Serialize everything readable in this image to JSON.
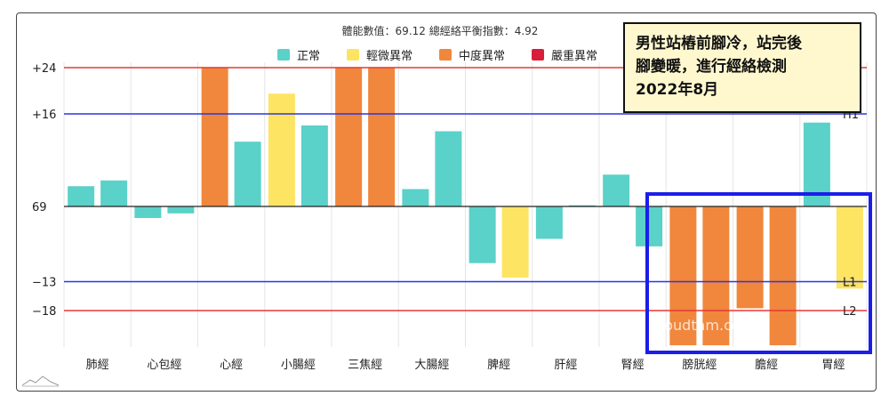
{
  "subtitle": "體能數值：69.12 總經絡平衡指數：4.92",
  "note": {
    "lines": [
      "男性站樁前腳冷，站完後",
      "腳變暖，進行經絡檢測",
      "2022年8月"
    ]
  },
  "watermark": "cloudtam.com",
  "legend": [
    {
      "label": "正常",
      "color": "#5ad1c9"
    },
    {
      "label": "輕微異常",
      "color": "#fde463"
    },
    {
      "label": "中度異常",
      "color": "#f0873d"
    },
    {
      "label": "嚴重異常",
      "color": "#d81e3a"
    }
  ],
  "chart_data": {
    "type": "bar",
    "baseline_label": "69",
    "y_ticks": [
      {
        "label": "+24",
        "value": 24
      },
      {
        "label": "+16",
        "value": 16
      },
      {
        "label": "69",
        "value": 0
      },
      {
        "label": "−13",
        "value": -13
      },
      {
        "label": "−18",
        "value": -18
      }
    ],
    "reference_lines": [
      {
        "value": 24,
        "color": "#e53935",
        "label": ""
      },
      {
        "value": 16,
        "color": "#2b36e0",
        "label": "H1"
      },
      {
        "value": -13,
        "color": "#2b36e0",
        "label": "L1"
      },
      {
        "value": -18,
        "color": "#e53935",
        "label": "L2"
      }
    ],
    "ylim": [
      -24,
      24
    ],
    "categories": [
      "肺經",
      "心包經",
      "心經",
      "小腸經",
      "三焦經",
      "大腸經",
      "脾經",
      "肝經",
      "腎經",
      "膀胱經",
      "膽經",
      "胃經"
    ],
    "bars": [
      {
        "values": [
          3.5,
          4.5
        ],
        "levels": [
          "正常",
          "正常"
        ]
      },
      {
        "values": [
          -2,
          -1.2
        ],
        "levels": [
          "正常",
          "正常"
        ]
      },
      {
        "values": [
          24,
          11.2
        ],
        "levels": [
          "中度異常",
          "正常"
        ]
      },
      {
        "values": [
          19.5,
          14
        ],
        "levels": [
          "輕微異常",
          "正常"
        ]
      },
      {
        "values": [
          24,
          24
        ],
        "levels": [
          "中度異常",
          "中度異常"
        ]
      },
      {
        "values": [
          3,
          13
        ],
        "levels": [
          "正常",
          "正常"
        ]
      },
      {
        "values": [
          -9.8,
          -12.3
        ],
        "levels": [
          "正常",
          "輕微異常"
        ]
      },
      {
        "values": [
          -5.6,
          0.2
        ],
        "levels": [
          "正常",
          "正常"
        ]
      },
      {
        "values": [
          5.5,
          -6.9
        ],
        "levels": [
          "正常",
          "正常"
        ]
      },
      {
        "values": [
          -24,
          -24
        ],
        "levels": [
          "中度異常",
          "中度異常"
        ]
      },
      {
        "values": [
          -17.6,
          -24
        ],
        "levels": [
          "中度異常",
          "中度異常"
        ]
      },
      {
        "values": [
          14.5,
          -14.2
        ],
        "levels": [
          "正常",
          "輕微異常"
        ]
      }
    ]
  }
}
